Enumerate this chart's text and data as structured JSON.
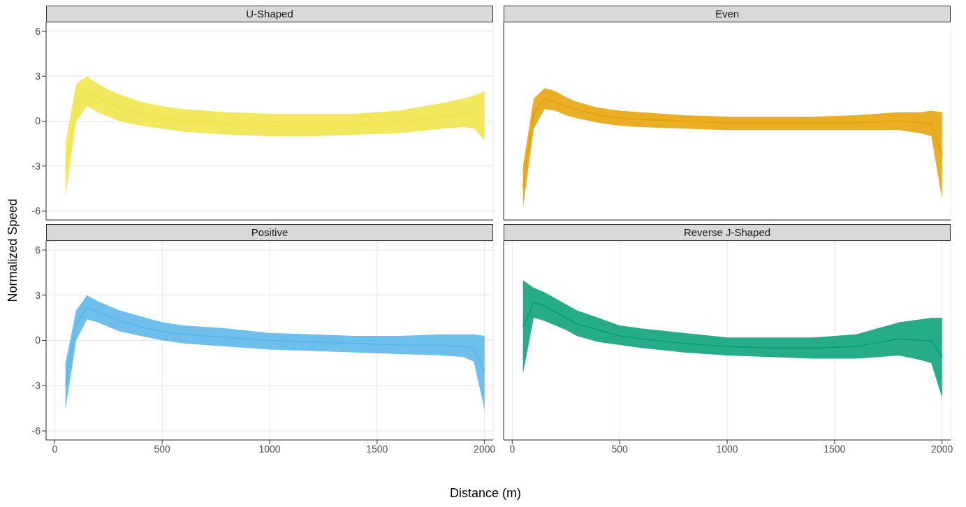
{
  "chart_data": [
    {
      "type": "line",
      "title": "U-Shaped",
      "ylabel": "Normalized Speed",
      "x": [
        50,
        100,
        150,
        200,
        250,
        300,
        400,
        500,
        600,
        800,
        1000,
        1200,
        1400,
        1600,
        1800,
        1900,
        1950,
        2000
      ],
      "xlim": [
        -40,
        2040
      ],
      "ylim": [
        -6.6,
        6.6
      ],
      "xticks": [
        0,
        500,
        1000,
        1500,
        2000
      ],
      "yticks": [
        -6,
        -3,
        0,
        3,
        6
      ],
      "grid": true,
      "tick_labels": "y",
      "series": [
        {
          "color": "#f0e442",
          "values": [
            -3.2,
            1.2,
            2,
            1.6,
            1.2,
            0.9,
            0.5,
            0.2,
            0,
            -0.2,
            -0.3,
            -0.3,
            -0.2,
            -0.1,
            0.3,
            0.5,
            0.5,
            0.3
          ],
          "lower": [
            -5,
            0,
            1,
            0.6,
            0.3,
            0,
            -0.3,
            -0.5,
            -0.7,
            -0.9,
            -1,
            -1,
            -0.9,
            -0.8,
            -0.5,
            -0.4,
            -0.5,
            -1.3
          ],
          "upper": [
            -1.5,
            2.5,
            3,
            2.5,
            2.1,
            1.8,
            1.3,
            1,
            0.8,
            0.6,
            0.5,
            0.5,
            0.5,
            0.7,
            1.2,
            1.5,
            1.7,
            2
          ]
        }
      ]
    },
    {
      "type": "line",
      "title": "Even",
      "x": [
        50,
        100,
        150,
        200,
        250,
        300,
        400,
        500,
        600,
        800,
        1000,
        1200,
        1400,
        1600,
        1800,
        1900,
        1950,
        2000
      ],
      "xlim": [
        -40,
        2040
      ],
      "ylim": [
        -6.6,
        6.6
      ],
      "xticks": [
        0,
        500,
        1000,
        1500,
        2000
      ],
      "yticks": [
        -6,
        -3,
        0,
        3,
        6
      ],
      "grid": true,
      "tick_labels": false,
      "series": [
        {
          "color": "#e69f00",
          "values": [
            -4.4,
            0.5,
            1.5,
            1.3,
            1,
            0.8,
            0.4,
            0.2,
            0.1,
            0,
            -0.1,
            -0.1,
            -0.1,
            -0.1,
            0,
            -0.1,
            -0.2,
            -2.3
          ],
          "lower": [
            -5.8,
            -0.5,
            0.8,
            0.7,
            0.4,
            0.2,
            -0.1,
            -0.3,
            -0.4,
            -0.5,
            -0.6,
            -0.6,
            -0.6,
            -0.6,
            -0.6,
            -0.8,
            -1,
            -5.2
          ],
          "upper": [
            -3,
            1.5,
            2.2,
            2,
            1.6,
            1.3,
            0.9,
            0.7,
            0.6,
            0.4,
            0.3,
            0.3,
            0.3,
            0.4,
            0.6,
            0.6,
            0.7,
            0.6
          ]
        }
      ]
    },
    {
      "type": "line",
      "title": "Positive",
      "xlabel": "Distance (m)",
      "x": [
        50,
        100,
        150,
        200,
        250,
        300,
        400,
        500,
        600,
        800,
        1000,
        1200,
        1400,
        1600,
        1800,
        1900,
        1950,
        2000
      ],
      "xlim": [
        -40,
        2040
      ],
      "ylim": [
        -6.6,
        6.6
      ],
      "xticks": [
        0,
        500,
        1000,
        1500,
        2000
      ],
      "yticks": [
        -6,
        -3,
        0,
        3,
        6
      ],
      "grid": true,
      "series": [
        {
          "color": "#56b4e9",
          "values": [
            -3,
            1,
            2.2,
            1.9,
            1.6,
            1.3,
            0.9,
            0.6,
            0.4,
            0.2,
            0,
            -0.1,
            -0.2,
            -0.3,
            -0.3,
            -0.4,
            -0.5,
            -2.1
          ],
          "lower": [
            -4.6,
            0,
            1.4,
            1.2,
            0.9,
            0.6,
            0.3,
            0,
            -0.2,
            -0.4,
            -0.6,
            -0.7,
            -0.8,
            -0.9,
            -1,
            -1.1,
            -1.4,
            -4.6
          ],
          "upper": [
            -1.5,
            2,
            3,
            2.6,
            2.3,
            2,
            1.6,
            1.2,
            1,
            0.8,
            0.5,
            0.4,
            0.3,
            0.3,
            0.4,
            0.4,
            0.4,
            0.3
          ]
        }
      ]
    },
    {
      "type": "line",
      "title": "Reverse J-Shaped",
      "x": [
        50,
        100,
        150,
        200,
        250,
        300,
        400,
        500,
        600,
        800,
        1000,
        1200,
        1400,
        1600,
        1800,
        1900,
        1950,
        2000
      ],
      "xlim": [
        -40,
        2040
      ],
      "ylim": [
        -6.6,
        6.6
      ],
      "xticks": [
        0,
        500,
        1000,
        1500,
        2000
      ],
      "yticks": [
        -6,
        -3,
        0,
        3,
        6
      ],
      "grid": true,
      "tick_labels": "x",
      "series": [
        {
          "color": "#009e73",
          "values": [
            0.9,
            2.5,
            2.3,
            1.9,
            1.5,
            1.1,
            0.7,
            0.3,
            0.1,
            -0.2,
            -0.4,
            -0.5,
            -0.5,
            -0.4,
            0.1,
            0,
            0,
            -1.1
          ],
          "lower": [
            -2.2,
            1.5,
            1.3,
            1,
            0.7,
            0.3,
            -0.1,
            -0.3,
            -0.5,
            -0.8,
            -1,
            -1.1,
            -1.2,
            -1.2,
            -1,
            -1.3,
            -1.5,
            -3.8
          ],
          "upper": [
            4,
            3.5,
            3.2,
            2.8,
            2.4,
            2,
            1.5,
            1,
            0.8,
            0.5,
            0.2,
            0.2,
            0.2,
            0.4,
            1.2,
            1.4,
            1.5,
            1.5
          ]
        }
      ]
    }
  ]
}
